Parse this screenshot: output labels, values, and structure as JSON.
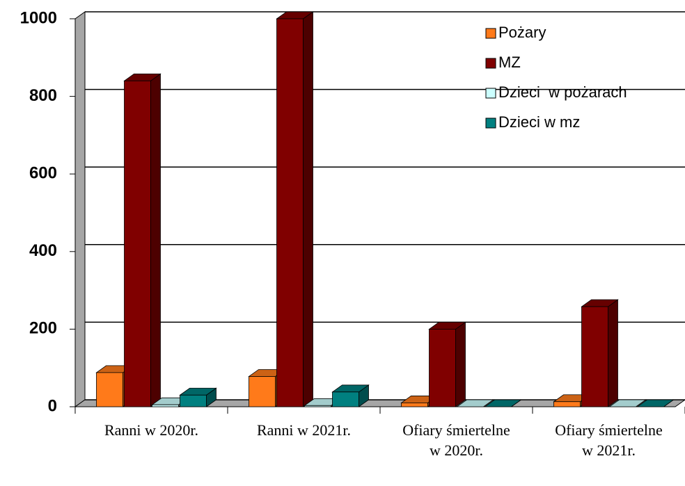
{
  "chart_data": {
    "type": "bar3d",
    "categories": [
      "Ranni w 2020r.",
      "Ranni w 2021r.",
      "Ofiary śmiertelne w 2020r.",
      "Ofiary śmiertelne w 2021r."
    ],
    "series": [
      {
        "name": "Pożary",
        "color": "#ff7a1a",
        "values": [
          88,
          78,
          10,
          13
        ]
      },
      {
        "name": "MZ",
        "color": "#800000",
        "values": [
          840,
          1000,
          200,
          258
        ]
      },
      {
        "name": "Dzieci  w pożarach",
        "color": "#ccffff",
        "values": [
          5,
          3,
          0,
          0
        ]
      },
      {
        "name": "Dzieci w mz",
        "color": "#008080",
        "values": [
          30,
          38,
          0,
          0
        ]
      }
    ],
    "ylim": [
      0,
      1000
    ],
    "yticks": [
      0,
      200,
      400,
      600,
      800,
      1000
    ],
    "grid": true,
    "legend": "top-right"
  }
}
